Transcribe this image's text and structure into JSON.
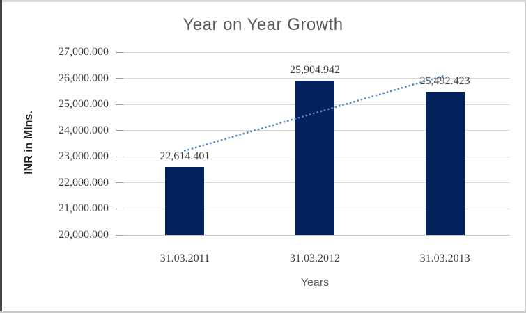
{
  "chart_data": {
    "type": "bar",
    "title": "Year on Year Growth",
    "categories": [
      "31.03.2011",
      "31.03.2012",
      "31.03.2013"
    ],
    "values": [
      22614.401,
      25904.942,
      25492.423
    ],
    "data_labels": [
      "22,614.401",
      "25,904.942",
      "25,492.423"
    ],
    "xlabel": "Years",
    "ylabel": "INR in Mlns.",
    "y_tick_labels": [
      "27,000.000",
      "26,000.000",
      "25,000.000",
      "24,000.000",
      "23,000.000",
      "22,000.000",
      "21,000.000",
      "20,000.000"
    ],
    "y_tick_values": [
      27000,
      26000,
      25000,
      24000,
      23000,
      22000,
      21000,
      20000
    ],
    "ylim": [
      20000,
      27000
    ],
    "grid": true,
    "legend": "none",
    "trendline": {
      "type": "linear",
      "style": "dotted",
      "start_value": 23231.6,
      "end_value": 26109.6,
      "color": "#4e86c6"
    },
    "colors": {
      "bar": "#03215c",
      "gridline": "#d9d9d9",
      "axis_line": "#c3c3c3",
      "number_text": "#404040",
      "title_text": "#595959"
    }
  }
}
